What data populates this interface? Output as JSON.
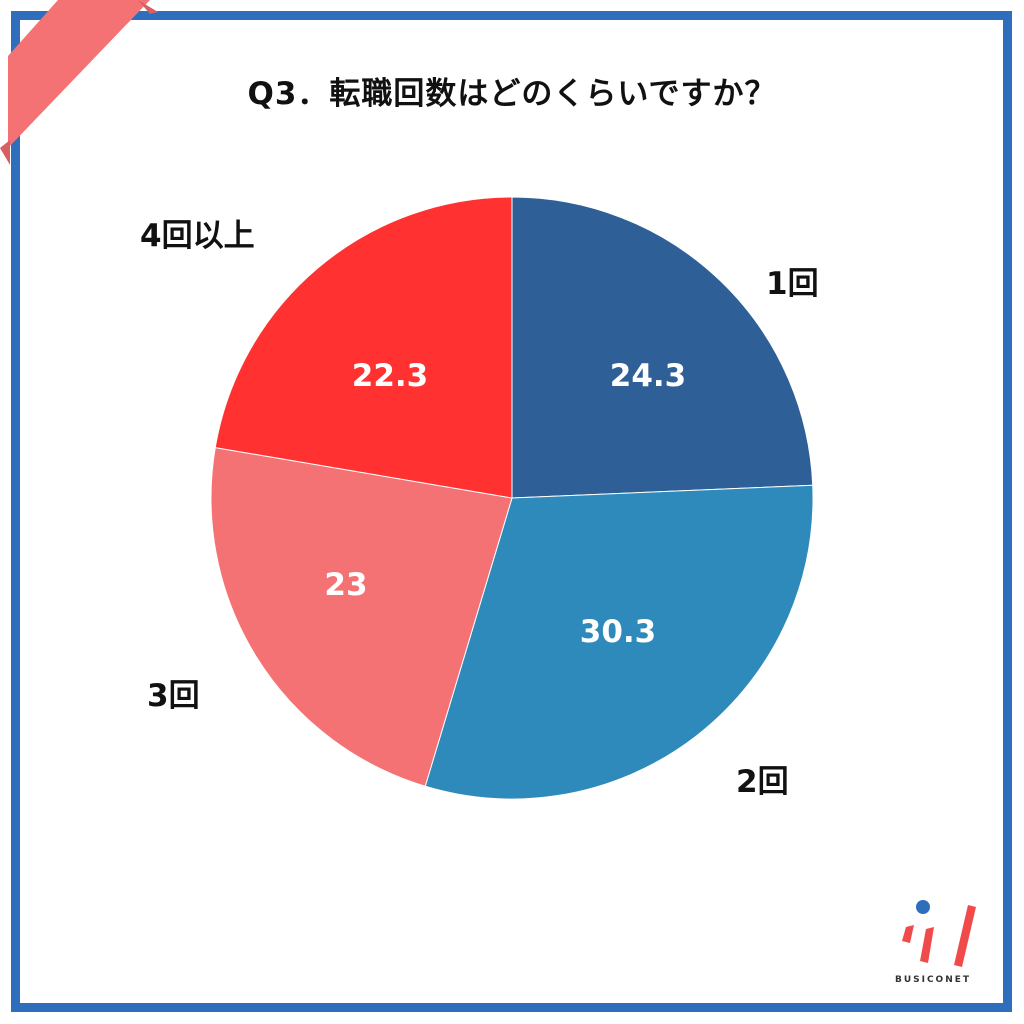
{
  "title": "Q3．転職回数はどのくらいですか？",
  "colors": {
    "frame": "#2f6dbd",
    "ribbon": "#f47274",
    "slice_1": "#2e5f96",
    "slice_2": "#2e8aba",
    "slice_3": "#f47274",
    "slice_4": "#ff3131"
  },
  "chart_data": {
    "type": "pie",
    "title": "Q3．転職回数はどのくらいですか？",
    "categories": [
      "1回",
      "2回",
      "3回",
      "4回以上"
    ],
    "values": [
      24.3,
      30.3,
      23,
      22.3
    ],
    "value_labels": [
      "24.3",
      "30.3",
      "23",
      "22.3"
    ],
    "start_angle": "12 o'clock, clockwise",
    "legend": "none (labels outside slices)"
  },
  "labels": {
    "s1": "1回",
    "s2": "2回",
    "s3": "3回",
    "s4": "4回以上"
  },
  "values": {
    "s1": "24.3",
    "s2": "30.3",
    "s3": "23",
    "s4": "22.3"
  },
  "logo": {
    "text": "BUSICONET"
  }
}
